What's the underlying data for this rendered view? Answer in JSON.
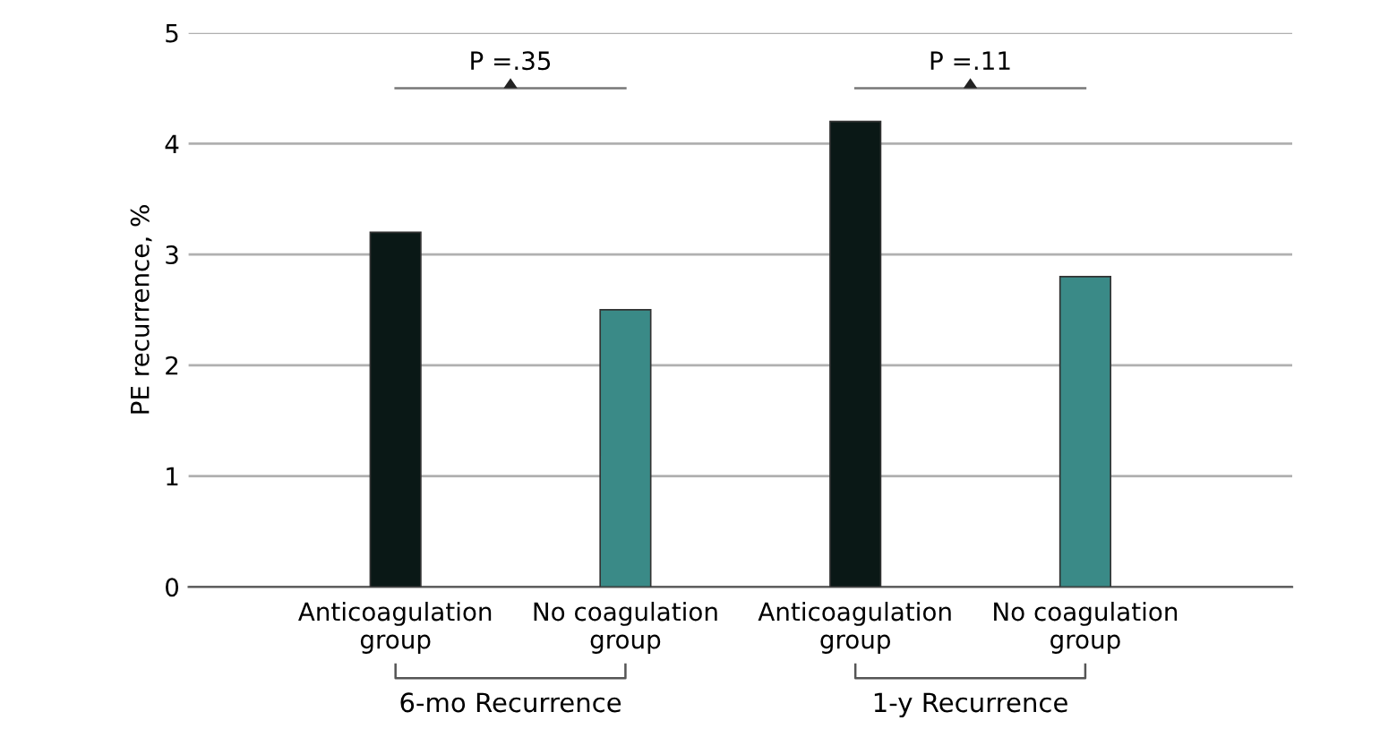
{
  "chart_data": {
    "type": "bar",
    "ylabel": "PE recurrence, %",
    "categories": [
      "Anticoagulation\ngroup",
      "No coagulation\ngroup",
      "Anticoagulation\ngroup",
      "No coagulation\ngroup"
    ],
    "values": [
      3.2,
      2.5,
      4.2,
      2.8
    ],
    "colors": [
      "#0a1816",
      "#3a8a87",
      "#0a1816",
      "#3a8a87"
    ],
    "ylim": [
      0,
      5
    ],
    "yticks": [
      0,
      1,
      2,
      3,
      4,
      5
    ],
    "grid": "y",
    "annotations": [
      "P =.35",
      "P =.11",
      "6-mo Recurrence",
      "1-y Recurrence"
    ]
  }
}
